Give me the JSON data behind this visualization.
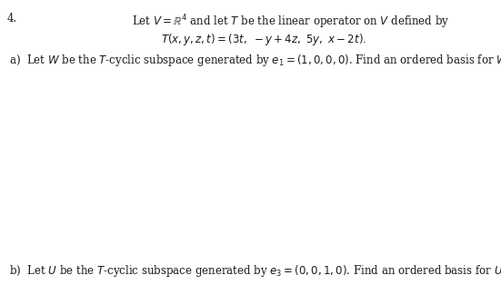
{
  "problem_number": "4.",
  "line1": "Let $V = \\mathbb{R}^4$ and let $T$ be the linear operator on $V$ defined by",
  "line2": "$T(x, y, z, t) = (3t,\\ -y + 4z,\\ 5y,\\ x - 2t).$",
  "line_a": "a)  Let $W$ be the $T$-cyclic subspace generated by $e_1 = (1, 0, 0, 0)$. Find an ordered basis for $W$.",
  "line_b": "b)  Let $U$ be the $T$-cyclic subspace generated by $e_3 = (0, 0, 1, 0)$. Find an ordered basis for $U$.",
  "bg_color": "#ffffff",
  "text_color": "#1a1a1a",
  "fig_width": 5.51,
  "fig_height": 3.14,
  "dpi": 100,
  "fontsize": 8.5
}
